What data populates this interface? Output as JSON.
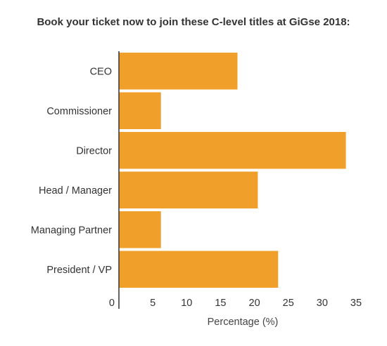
{
  "chart_data": {
    "type": "bar",
    "orientation": "horizontal",
    "title": "Book your ticket now to join these C-level titles at GiGse 2018:",
    "categories": [
      "CEO",
      "Commissioner",
      "Director",
      "Head / Manager",
      "Managing Partner",
      "President / VP"
    ],
    "values": [
      17.5,
      6.2,
      33.5,
      20.5,
      6.2,
      23.5
    ],
    "xlabel": "Percentage (%)",
    "ylabel": "",
    "xlim": [
      0,
      35
    ],
    "xticks": [
      "0",
      "5",
      "10",
      "15",
      "20",
      "25",
      "30",
      "35"
    ],
    "grid": false,
    "legend": "none",
    "colors": {
      "bar": "#F0A02A",
      "bar_stroke": "#ffffff",
      "axis": "#333333"
    }
  }
}
